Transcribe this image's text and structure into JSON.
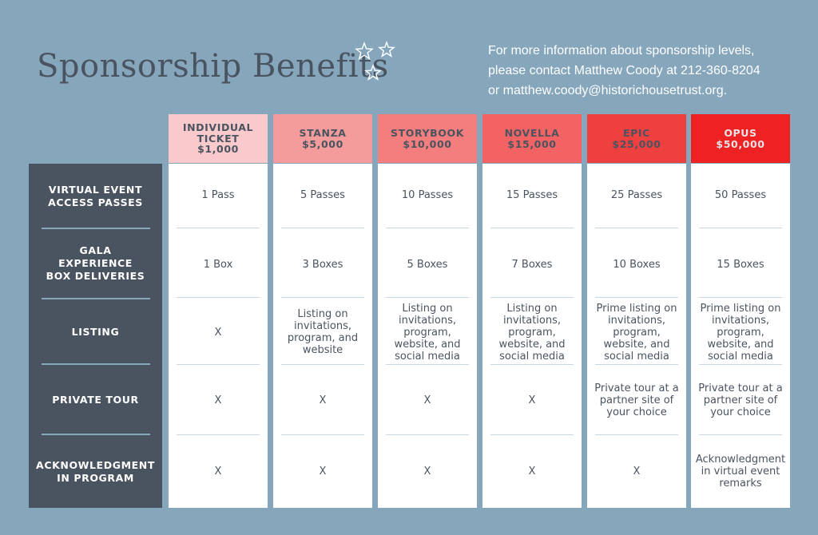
{
  "title": "Sponsorship Benefits",
  "contact": {
    "line1": "For more information about sponsorship levels,",
    "line2": "please contact Matthew Coody at 212-360-8204",
    "line3": "or matthew.coody@historichousetrust.org."
  },
  "decoration": {
    "icon": "stars-icon"
  },
  "rows": [
    "VIRTUAL EVENT ACCESS PASSES",
    "GALA EXPERIENCE BOX DELIVERIES",
    "LISTING",
    "PRIVATE TOUR",
    "ACKNOWLEDGMENT IN PROGRAM"
  ],
  "tiers": [
    {
      "name": "INDIVIDUAL TICKET",
      "price": "$1,000",
      "color": "#f9c9cc",
      "cells": [
        "1 Pass",
        "1 Box",
        "X",
        "X",
        "X"
      ]
    },
    {
      "name": "STANZA",
      "price": "$5,000",
      "color": "#f49b9b",
      "cells": [
        "5 Passes",
        "3 Boxes",
        "Listing on invitations, program, and website",
        "X",
        "X"
      ]
    },
    {
      "name": "STORYBOOK",
      "price": "$10,000",
      "color": "#f47d7d",
      "cells": [
        "10 Passes",
        "5 Boxes",
        "Listing on invitations, program, website, and social media",
        "X",
        "X"
      ]
    },
    {
      "name": "NOVELLA",
      "price": "$15,000",
      "color": "#f36363",
      "cells": [
        "15 Passes",
        "7 Boxes",
        "Listing on invitations, program, website, and social media",
        "X",
        "X"
      ]
    },
    {
      "name": "EPIC",
      "price": "$25,000",
      "color": "#ef4040",
      "cells": [
        "25 Passes",
        "10 Boxes",
        "Prime listing on invitations, program, website, and social media",
        "Private tour at a partner site of your choice",
        "X"
      ]
    },
    {
      "name": "OPUS",
      "price": "$50,000",
      "color": "#ee2222",
      "cells": [
        "50 Passes",
        "15 Boxes",
        "Prime listing on invitations, program, website, and social media",
        "Private tour at a partner site of your choice",
        "Acknowledgment in virtual event remarks"
      ]
    }
  ]
}
